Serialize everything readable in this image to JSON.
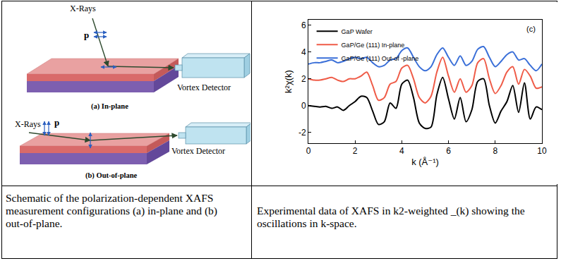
{
  "figure": {
    "panels": [
      {
        "label": "(a) In-plane",
        "source": "X-Rays",
        "polarization": "p",
        "detector": "Vortex Detector"
      },
      {
        "label": "(b) Out-of-plane",
        "source": "X-Rays",
        "polarization": "p",
        "detector": "Vortex Detector"
      }
    ],
    "captions": [
      "Schematic of the polarization-dependent XAFS measurement configurations (a) in-plane and (b) out-of-plane.",
      "Experimental data of XAFS in k2-weighted _(k) showing the oscillations in k-space."
    ]
  },
  "chart_data": {
    "type": "line",
    "x_label": "k (Å⁻¹)",
    "y_label": "k²χ(k)",
    "annotations": [
      "(c)"
    ],
    "x": [
      0,
      0.25,
      0.5,
      0.75,
      1,
      1.25,
      1.5,
      1.75,
      2,
      2.25,
      2.5,
      2.75,
      3,
      3.25,
      3.5,
      3.75,
      4,
      4.25,
      4.5,
      4.75,
      5,
      5.25,
      5.5,
      5.75,
      6,
      6.25,
      6.5,
      6.75,
      7,
      7.25,
      7.5,
      7.75,
      8,
      8.25,
      8.5,
      8.75,
      9,
      9.25,
      9.5,
      9.75,
      10
    ],
    "series": [
      {
        "name": "GaP Wafer",
        "color": "#000000",
        "values": [
          0.0,
          -0.05,
          -0.1,
          -0.05,
          -0.2,
          -0.1,
          -0.35,
          0.0,
          0.3,
          0.7,
          0.6,
          -0.4,
          -1.4,
          -1.2,
          0.2,
          -0.2,
          1.6,
          1.9,
          0.6,
          -1.3,
          -1.7,
          -1.6,
          0.8,
          2.1,
          0.5,
          -1.0,
          0.6,
          -1.2,
          -0.3,
          1.8,
          2.0,
          0.0,
          -1.3,
          -0.4,
          0.3,
          1.5,
          -0.5,
          1.7,
          -1.0,
          -0.1,
          -0.3
        ]
      },
      {
        "name": "GaP/Ge (111) In-plane",
        "color": "#ef5b47",
        "values": [
          2.0,
          1.9,
          1.9,
          2.0,
          2.1,
          1.9,
          1.8,
          2.0,
          2.0,
          2.2,
          2.5,
          1.5,
          0.4,
          0.6,
          1.6,
          1.8,
          2.8,
          3.0,
          2.0,
          0.6,
          0.2,
          0.7,
          2.5,
          3.6,
          2.2,
          1.0,
          2.0,
          1.0,
          1.5,
          3.2,
          3.5,
          2.0,
          0.9,
          1.5,
          2.5,
          2.9,
          1.6,
          2.7,
          2.2,
          1.3,
          1.4
        ]
      },
      {
        "name": "GaP/Ge (111) Out-of -plane",
        "color": "#3a6fd8",
        "values": [
          3.1,
          3.2,
          3.2,
          3.3,
          3.4,
          3.2,
          3.3,
          3.5,
          3.6,
          3.5,
          3.6,
          3.2,
          2.9,
          3.0,
          3.4,
          3.5,
          4.1,
          4.3,
          3.6,
          2.9,
          2.6,
          2.9,
          3.8,
          4.3,
          3.6,
          3.0,
          3.7,
          3.0,
          3.3,
          4.2,
          4.4,
          3.6,
          2.9,
          3.3,
          3.8,
          4.0,
          3.4,
          3.5,
          3.0,
          2.6,
          3.1
        ]
      }
    ],
    "xlim": [
      0,
      10
    ],
    "xticks": [
      0,
      2,
      4,
      6,
      8,
      10
    ],
    "ylim": [
      -2.8,
      6.4
    ],
    "yticks": [
      -2,
      0,
      2,
      4,
      6
    ],
    "legend": "top-left",
    "grid": false
  }
}
